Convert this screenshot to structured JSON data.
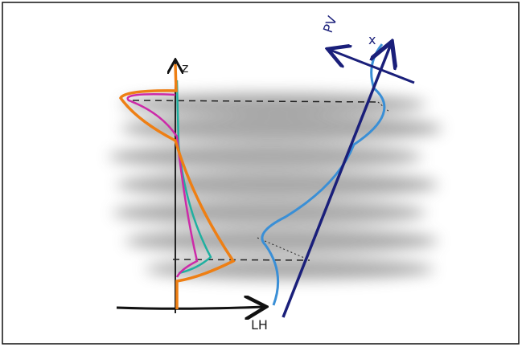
{
  "labels": {
    "z": "z",
    "x": "x",
    "pv": "PV",
    "lh": "LH"
  }
}
